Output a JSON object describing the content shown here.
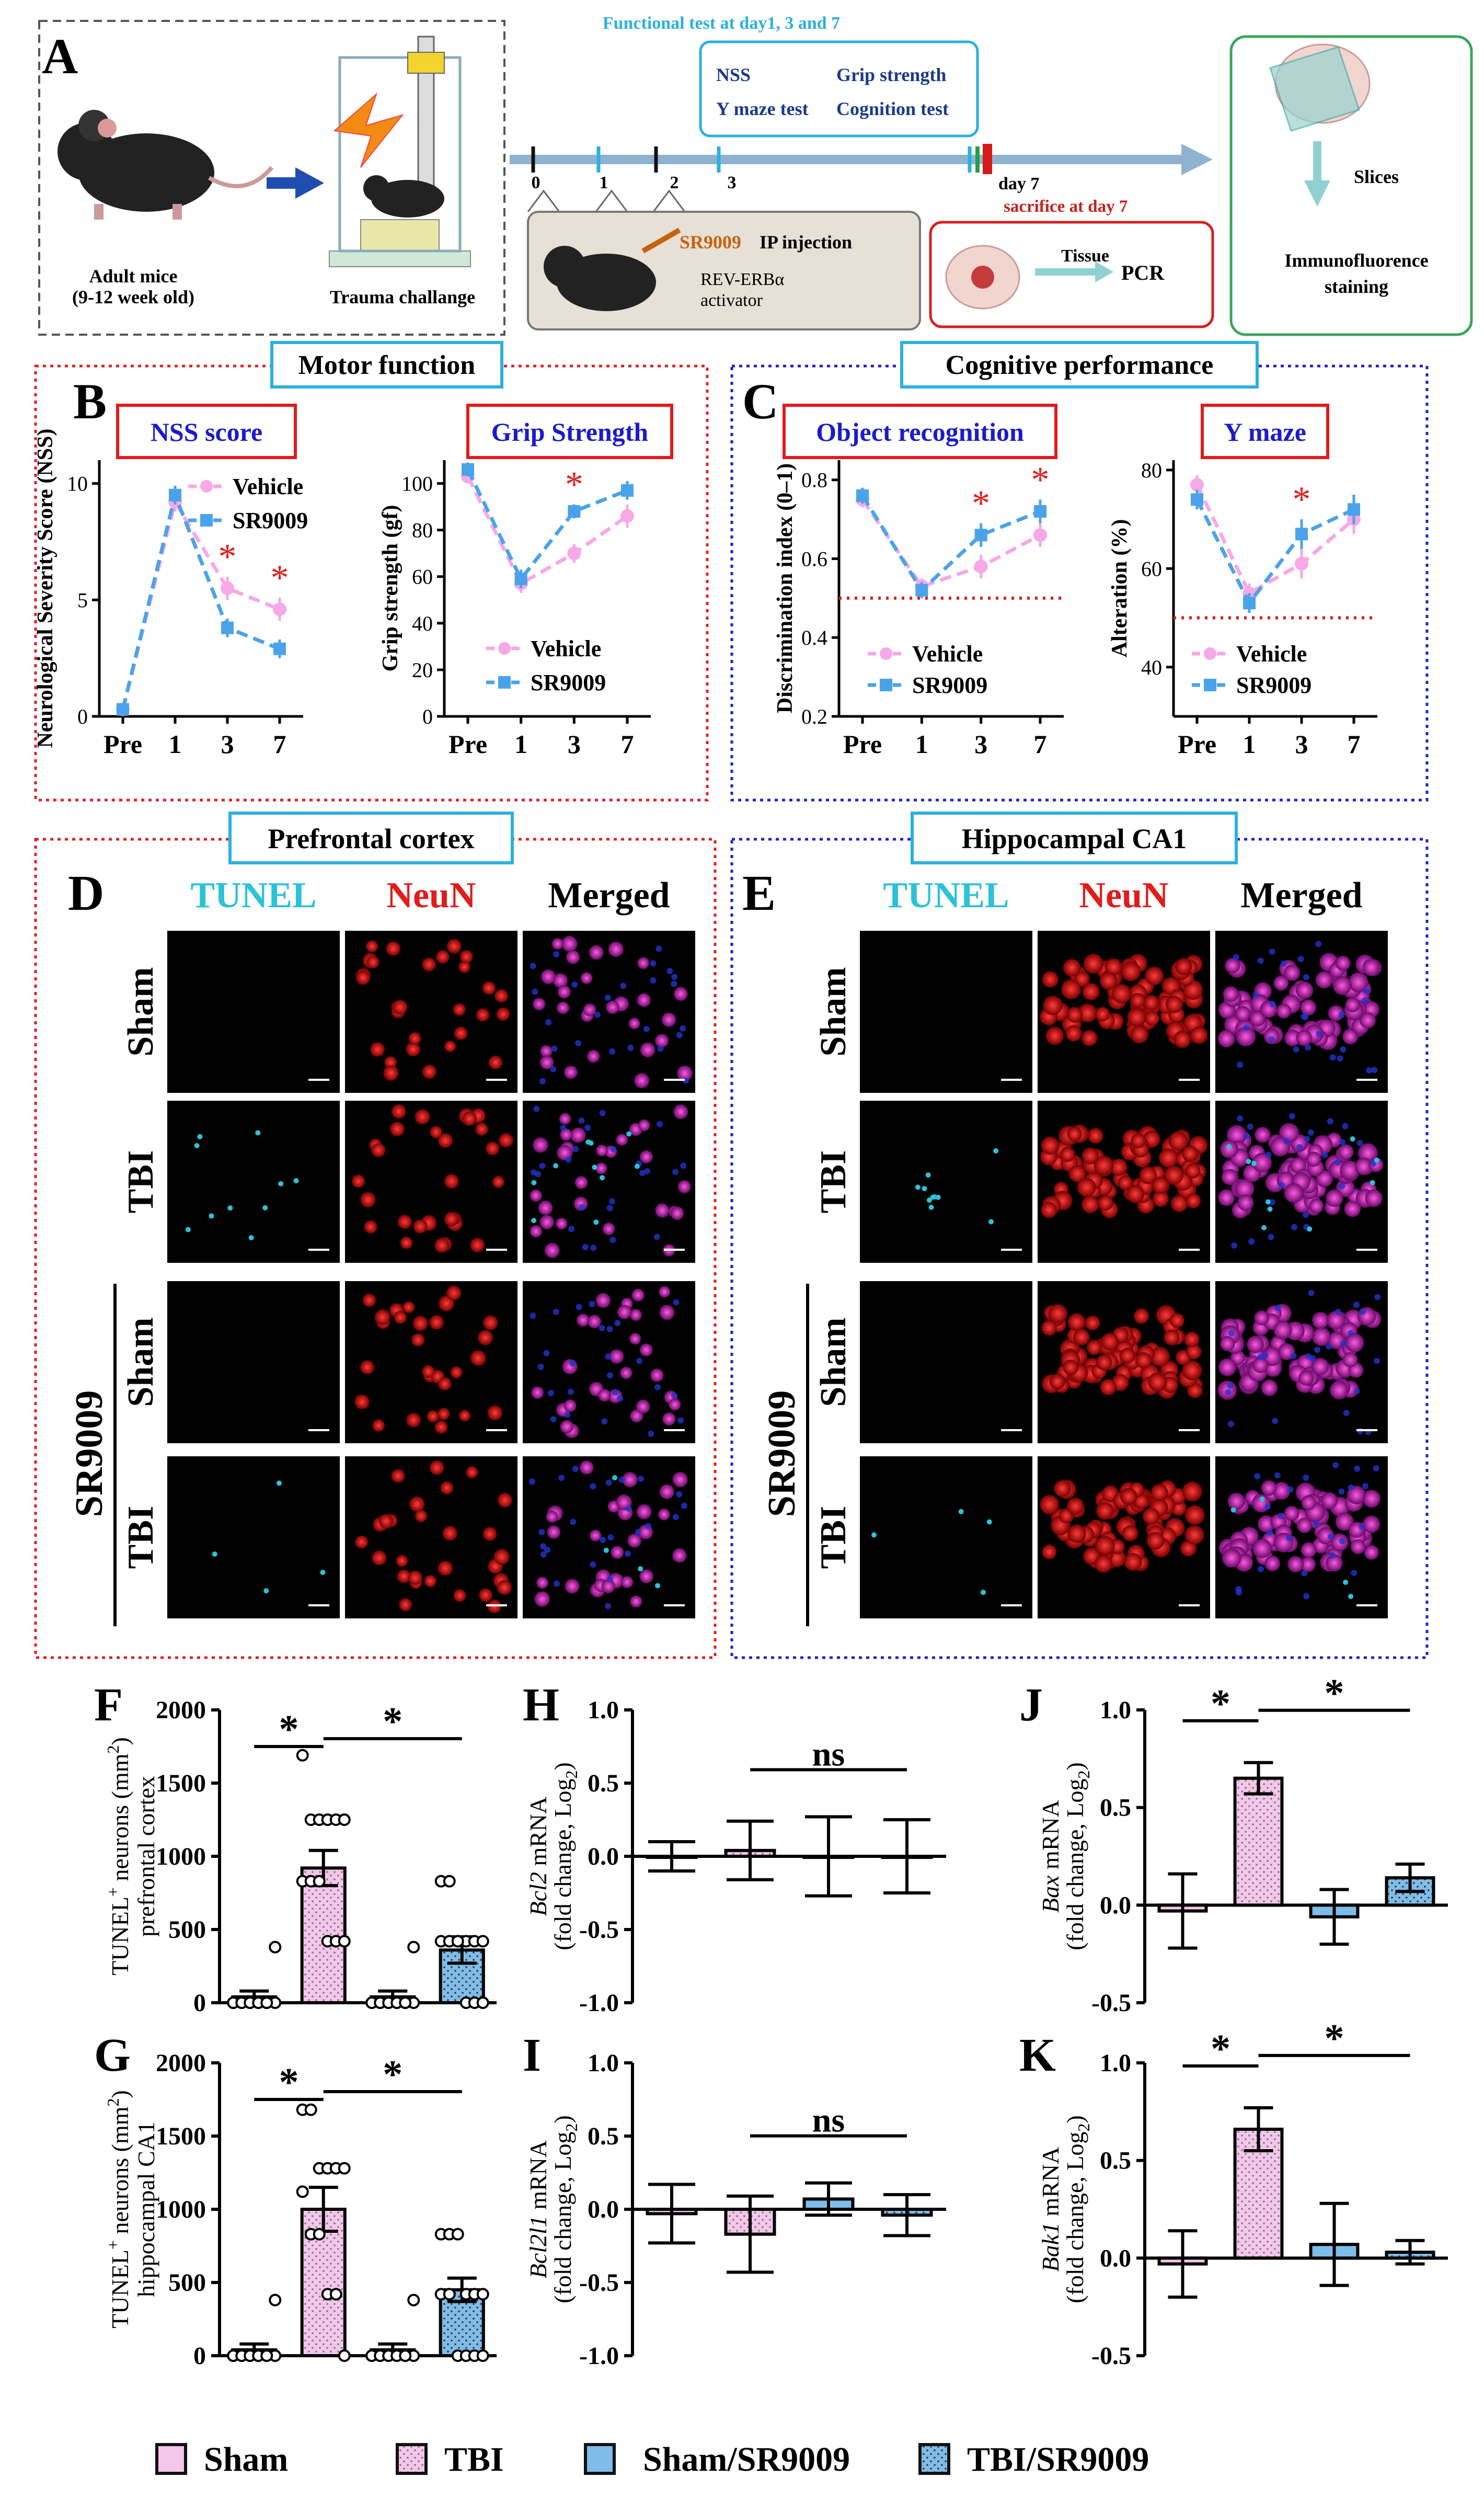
{
  "panelA": {
    "letter": "A",
    "mouse_label_1": "Adult mice",
    "mouse_label_2": "(9-12 week old)",
    "trauma_label": "Trauma challange",
    "timeline_header": "Functional test at day1, 3 and 7",
    "tests": [
      "NSS",
      "Grip strength",
      "Y maze test",
      "Cognition test"
    ],
    "ticks": [
      "0",
      "1",
      "2",
      "3"
    ],
    "day7": "day 7",
    "sacrifice": "sacrifice at day 7",
    "drug_name": "SR9009",
    "injection_suffix": " IP injection",
    "activator_1": "REV-ERBα",
    "activator_2": "activator",
    "tissue": "Tissue",
    "pcr": "PCR",
    "slices": "Slices",
    "immuno_1": "Immunofluorence",
    "immuno_2": "staining"
  },
  "sectionTitles": {
    "motor": "Motor function",
    "cognitive": "Cognitive performance",
    "pfc": "Prefrontal cortex",
    "ca1": "Hippocampal CA1"
  },
  "letters": {
    "B": "B",
    "C": "C",
    "D": "D",
    "E": "E",
    "F": "F",
    "G": "G",
    "H": "H",
    "I": "I",
    "J": "J",
    "K": "K"
  },
  "legendLines": {
    "vehicle": "Vehicle",
    "sr9009": "SR9009"
  },
  "colors": {
    "vehicle": "#f7a8e6",
    "sr9009": "#4aa3ea",
    "sham": "#f4c6ea",
    "sr_bar": "#7fbce9",
    "sig": "#e0201c",
    "red": "#e21b1b",
    "blue": "#1b1bcc",
    "cyan": "#2cc2d8"
  },
  "microscopy": {
    "channels": [
      "TUNEL",
      "NeuN",
      "Merged"
    ],
    "rows": [
      "Sham",
      "TBI",
      "Sham",
      "TBI"
    ],
    "drug_label": "SR9009"
  },
  "bottomLegend": [
    "Sham",
    "TBI",
    "Sham/SR9009",
    "TBI/SR9009"
  ],
  "chart_data": [
    {
      "id": "B1",
      "type": "line",
      "title": "NSS score",
      "ylabel": "Neurological Severity Score (NSS)",
      "categories": [
        "Pre",
        "1",
        "3",
        "7"
      ],
      "ylim": [
        0,
        11
      ],
      "yticks": [
        0,
        5,
        10
      ],
      "series": [
        {
          "name": "Vehicle",
          "values": [
            0.3,
            9.2,
            5.5,
            4.6
          ],
          "err": [
            0.2,
            0.4,
            0.5,
            0.5
          ]
        },
        {
          "name": "SR9009",
          "values": [
            0.3,
            9.5,
            3.8,
            2.9
          ],
          "err": [
            0.2,
            0.4,
            0.4,
            0.4
          ]
        }
      ],
      "sig": [
        "",
        "",
        "*",
        "*"
      ],
      "ref": null
    },
    {
      "id": "B2",
      "type": "line",
      "title": "Grip Strength",
      "ylabel": "Grip strength (gf)",
      "categories": [
        "Pre",
        "1",
        "3",
        "7"
      ],
      "ylim": [
        0,
        110
      ],
      "yticks": [
        0,
        20,
        40,
        60,
        80,
        100
      ],
      "series": [
        {
          "name": "Vehicle",
          "values": [
            103,
            57,
            70,
            86
          ],
          "err": [
            3,
            4,
            4,
            5
          ]
        },
        {
          "name": "SR9009",
          "values": [
            106,
            59,
            88,
            97
          ],
          "err": [
            3,
            4,
            3,
            4
          ]
        }
      ],
      "sig": [
        "",
        "",
        "*",
        ""
      ],
      "ref": null
    },
    {
      "id": "C1",
      "type": "line",
      "title": "Object recognition",
      "ylabel": "Discrimination index (0–1)",
      "categories": [
        "Pre",
        "1",
        "3",
        "7"
      ],
      "ylim": [
        0.2,
        0.85
      ],
      "yticks": [
        0.2,
        0.4,
        0.6,
        0.8
      ],
      "series": [
        {
          "name": "Vehicle",
          "values": [
            0.75,
            0.53,
            0.58,
            0.66
          ],
          "err": [
            0.02,
            0.02,
            0.03,
            0.03
          ]
        },
        {
          "name": "SR9009",
          "values": [
            0.76,
            0.52,
            0.66,
            0.72
          ],
          "err": [
            0.02,
            0.02,
            0.03,
            0.03
          ]
        }
      ],
      "sig": [
        "",
        "",
        "*",
        "*"
      ],
      "ref": 0.5
    },
    {
      "id": "C2",
      "type": "line",
      "title": "Y maze",
      "ylabel": "Alteration (%)",
      "categories": [
        "Pre",
        "1",
        "3",
        "7"
      ],
      "ylim": [
        30,
        82
      ],
      "yticks": [
        40,
        60,
        80
      ],
      "series": [
        {
          "name": "Vehicle",
          "values": [
            77,
            55,
            61,
            70
          ],
          "err": [
            2,
            2,
            3,
            3
          ]
        },
        {
          "name": "SR9009",
          "values": [
            74,
            53,
            67,
            72
          ],
          "err": [
            2,
            2,
            3,
            3
          ]
        }
      ],
      "sig": [
        "",
        "",
        "*",
        ""
      ],
      "ref": 50
    },
    {
      "id": "F",
      "type": "bar",
      "ylabel": [
        "TUNEL",
        "neurons (mm",
        "2",
        ")",
        "prefrontal cortex"
      ],
      "categories": [
        "Sham",
        "TBI",
        "Sham/SR9009",
        "TBI/SR9009"
      ],
      "ylim": [
        0,
        2000
      ],
      "yticks": [
        0,
        500,
        1000,
        1500,
        2000
      ],
      "values": [
        40,
        920,
        40,
        360
      ],
      "err": [
        40,
        120,
        40,
        90
      ],
      "points": [
        [
          0,
          0,
          0,
          0,
          0,
          0,
          0,
          0,
          0,
          0,
          0,
          380
        ],
        [
          1690,
          1250,
          1250,
          1250,
          1250,
          1250,
          830,
          830,
          830,
          420,
          420,
          420
        ],
        [
          0,
          0,
          0,
          0,
          0,
          0,
          0,
          0,
          0,
          0,
          0,
          380
        ],
        [
          830,
          830,
          420,
          420,
          420,
          420,
          420,
          420,
          420,
          0,
          0,
          0
        ]
      ],
      "sig": [
        [
          0,
          1,
          "*"
        ],
        [
          1,
          3,
          "*"
        ]
      ]
    },
    {
      "id": "G",
      "type": "bar",
      "ylabel": [
        "TUNEL",
        "neurons (mm",
        "2",
        ")",
        "hippocampal CA1"
      ],
      "categories": [
        "Sham",
        "TBI",
        "Sham/SR9009",
        "TBI/SR9009"
      ],
      "ylim": [
        0,
        2000
      ],
      "yticks": [
        0,
        500,
        1000,
        1500,
        2000
      ],
      "values": [
        40,
        1000,
        40,
        450
      ],
      "err": [
        40,
        150,
        40,
        80
      ],
      "points": [
        [
          0,
          0,
          0,
          0,
          0,
          0,
          0,
          0,
          0,
          0,
          0,
          380
        ],
        [
          1680,
          1680,
          1280,
          1280,
          1280,
          1280,
          1120,
          830,
          830,
          420,
          420,
          0
        ],
        [
          0,
          0,
          0,
          0,
          0,
          0,
          0,
          0,
          0,
          0,
          0,
          380
        ],
        [
          830,
          830,
          830,
          420,
          420,
          420,
          420,
          420,
          0,
          0,
          0,
          0
        ]
      ],
      "sig": [
        [
          0,
          1,
          "*"
        ],
        [
          1,
          3,
          "*"
        ]
      ]
    },
    {
      "id": "H",
      "type": "bar",
      "ylabel": [
        "Bcl2",
        "mRNA",
        "(fold change, Log",
        "2",
        ")"
      ],
      "categories": [
        "Sham",
        "TBI",
        "Sham/SR9009",
        "TBI/SR9009"
      ],
      "ylim": [
        -1,
        1
      ],
      "yticks": [
        -1.0,
        -0.5,
        0.0,
        0.5,
        1.0
      ],
      "values": [
        0.0,
        0.04,
        0.0,
        0.0
      ],
      "err": [
        0.1,
        0.2,
        0.27,
        0.25
      ],
      "sig": [
        [
          1,
          3,
          "ns"
        ]
      ]
    },
    {
      "id": "I",
      "type": "bar",
      "ylabel": [
        "Bcl2l1",
        "mRNA",
        "(fold change, Log",
        "2",
        ")"
      ],
      "categories": [
        "Sham",
        "TBI",
        "Sham/SR9009",
        "TBI/SR9009"
      ],
      "ylim": [
        -1,
        1
      ],
      "yticks": [
        -1.0,
        -0.5,
        0.0,
        0.5,
        1.0
      ],
      "values": [
        -0.03,
        -0.17,
        0.07,
        -0.04
      ],
      "err": [
        0.2,
        0.26,
        0.11,
        0.14
      ],
      "sig": [
        [
          1,
          3,
          "ns"
        ]
      ]
    },
    {
      "id": "J",
      "type": "bar",
      "ylabel": [
        "Bax",
        "mRNA",
        "(fold change, Log",
        "2",
        ")"
      ],
      "categories": [
        "Sham",
        "TBI",
        "Sham/SR9009",
        "TBI/SR9009"
      ],
      "ylim": [
        -0.5,
        1
      ],
      "yticks": [
        -0.5,
        0.0,
        0.5,
        1.0
      ],
      "values": [
        -0.03,
        0.65,
        -0.06,
        0.14
      ],
      "err": [
        0.19,
        0.08,
        0.14,
        0.07
      ],
      "sig": [
        [
          0,
          1,
          "*"
        ],
        [
          1,
          3,
          "*"
        ]
      ]
    },
    {
      "id": "K",
      "type": "bar",
      "ylabel": [
        "Bak1",
        "mRNA",
        "(fold change, Log",
        "2",
        ")"
      ],
      "categories": [
        "Sham",
        "TBI",
        "Sham/SR9009",
        "TBI/SR9009"
      ],
      "ylim": [
        -0.5,
        1
      ],
      "yticks": [
        -0.5,
        0.0,
        0.5,
        1.0
      ],
      "values": [
        -0.03,
        0.66,
        0.07,
        0.03
      ],
      "err": [
        0.17,
        0.11,
        0.21,
        0.06
      ],
      "sig": [
        [
          0,
          1,
          "*"
        ],
        [
          1,
          3,
          "*"
        ]
      ]
    }
  ]
}
